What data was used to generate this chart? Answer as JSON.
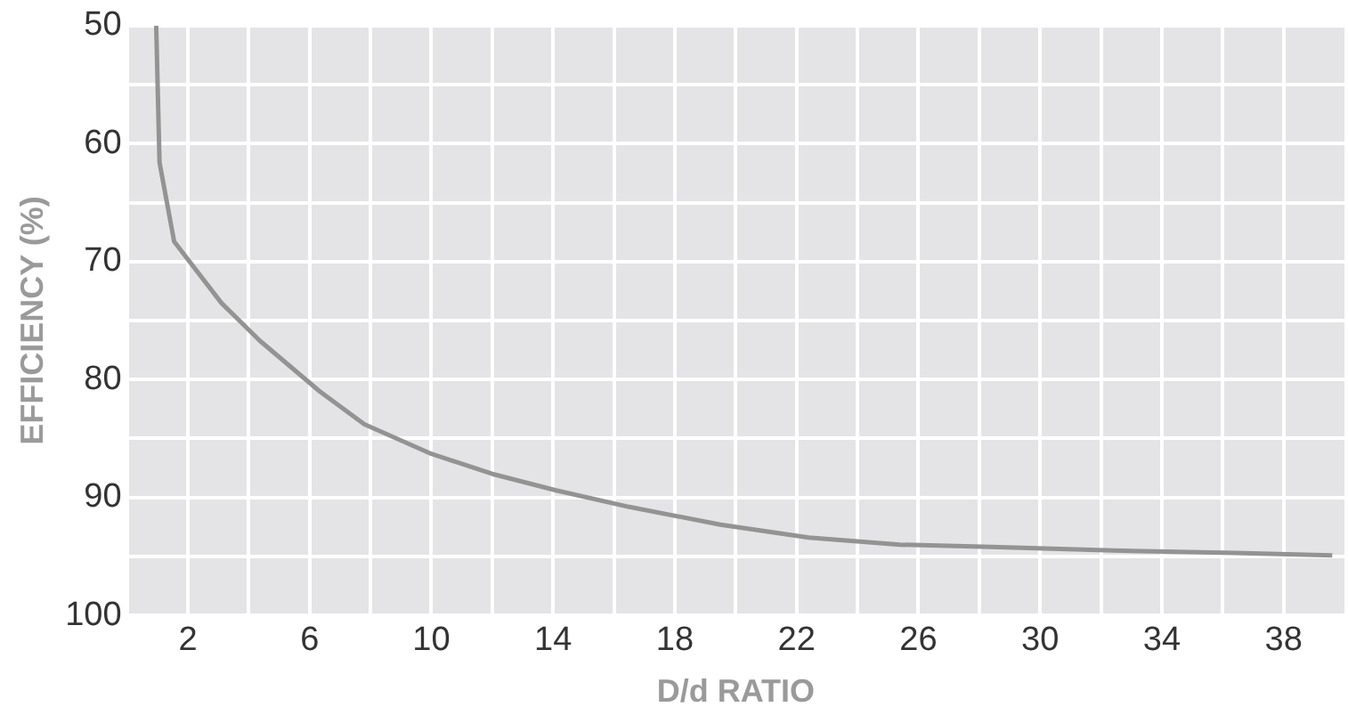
{
  "chart_data": {
    "type": "line",
    "xlabel": "D/d RATIO",
    "ylabel": "EFFICIENCY (%)",
    "x": [
      0.96,
      1.07,
      1.55,
      3.1,
      4.36,
      6.33,
      7.8,
      10,
      12,
      14.1,
      16.5,
      19.5,
      22.4,
      25.4,
      28.4,
      32.4,
      36.4,
      39.6
    ],
    "series": [
      {
        "color": "#939393",
        "values": [
          50,
          61.6,
          68.3,
          73.5,
          76.7,
          81,
          83.8,
          86.3,
          88,
          89.4,
          90.8,
          92.3,
          93.4,
          94,
          94.2,
          94.5,
          94.7,
          94.9
        ]
      }
    ],
    "xlim": [
      0,
      40
    ],
    "xticks": [
      {
        "value": 0,
        "label": null
      },
      2,
      {
        "value": 4,
        "label": null
      },
      6,
      {
        "value": 8,
        "label": null
      },
      10,
      {
        "value": 12,
        "label": null
      },
      14,
      {
        "value": 16,
        "label": null
      },
      18,
      {
        "value": 20,
        "label": null
      },
      22,
      {
        "value": 24,
        "label": null
      },
      26,
      {
        "value": 28,
        "label": null
      },
      30,
      {
        "value": 32,
        "label": null
      },
      34,
      {
        "value": 36,
        "label": null
      },
      38
    ],
    "ylim": [
      100,
      50
    ],
    "yticks": [
      50,
      {
        "value": 55,
        "label": null
      },
      60,
      {
        "value": 65,
        "label": null
      },
      70,
      {
        "value": 75,
        "label": null
      },
      80,
      {
        "value": 85,
        "label": null
      },
      90,
      {
        "value": 95,
        "label": null
      },
      100
    ],
    "grid": true,
    "marker": "none",
    "line_style": "solid",
    "legend": false
  }
}
